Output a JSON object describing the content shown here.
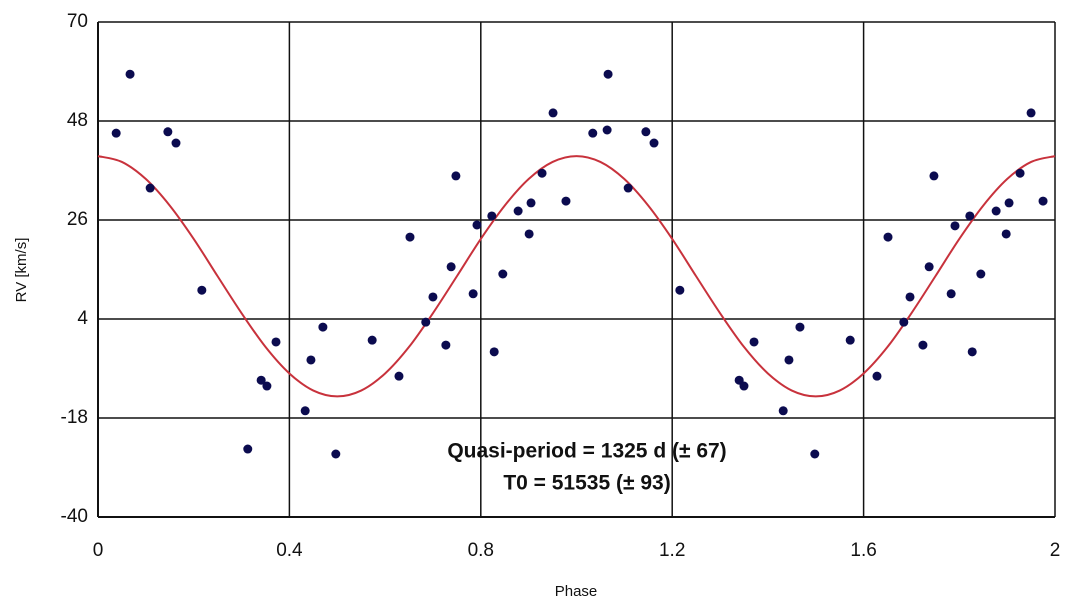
{
  "chart_data": {
    "type": "scatter",
    "x_label": "Phase",
    "y_label": "RV [km/s]",
    "annotations": [
      "Quasi-period = 1325 d (± 67)",
      "T0 = 51535 (± 93)"
    ],
    "xlim": [
      0,
      2
    ],
    "xticks": [
      0,
      0.4,
      0.8,
      1.2,
      1.6,
      2
    ],
    "ylim": [
      -40,
      70
    ],
    "yticks": [
      -40,
      -18,
      4,
      26,
      48,
      70
    ],
    "grid": true,
    "points": {
      "color": "#0b0b4f",
      "x": [
        0.038,
        0.067,
        0.109,
        0.146,
        0.163,
        0.217,
        0.313,
        0.341,
        0.353,
        0.372,
        0.433,
        0.445,
        0.47,
        0.497,
        0.573,
        0.629,
        0.652,
        0.685,
        0.7,
        0.727,
        0.738,
        0.748,
        0.784,
        0.792,
        0.823,
        0.828,
        0.846,
        0.878,
        0.901,
        0.905,
        0.928,
        0.951,
        0.978,
        1.034,
        1.064,
        1.066,
        1.108,
        1.145,
        1.162,
        1.216,
        1.34,
        1.35,
        1.371,
        1.432,
        1.444,
        1.467,
        1.498,
        1.572,
        1.628,
        1.651,
        1.684,
        1.697,
        1.724,
        1.737,
        1.747,
        1.783,
        1.791,
        1.822,
        1.827,
        1.845,
        1.877,
        1.898,
        1.904,
        1.927,
        1.95,
        1.975
      ],
      "values": [
        45.3,
        58.4,
        33.1,
        45.6,
        43.1,
        10.4,
        -24.9,
        -9.6,
        -10.9,
        -1.1,
        -16.4,
        -5.1,
        2.2,
        -26,
        -0.7,
        -8.7,
        22.2,
        3.3,
        8.9,
        -1.8,
        15.6,
        35.8,
        9.6,
        24.9,
        26.9,
        -3.3,
        14.0,
        28.0,
        22.9,
        29.8,
        36.4,
        49.8,
        30.2,
        45.3,
        46.0,
        58.4,
        33.1,
        45.6,
        43.1,
        10.4,
        -9.6,
        -10.9,
        -1.1,
        -16.4,
        -5.1,
        2.2,
        -26,
        -0.7,
        -8.7,
        22.2,
        3.3,
        8.9,
        -1.8,
        15.6,
        35.8,
        9.6,
        24.7,
        26.9,
        -3.3,
        14.0,
        28.0,
        22.9,
        29.8,
        36.4,
        49.8,
        30.2
      ]
    },
    "fit": {
      "color": "#c8323c",
      "x": [
        0,
        0.05,
        0.1,
        0.15,
        0.2,
        0.25,
        0.3,
        0.35,
        0.4,
        0.45,
        0.5,
        0.55,
        0.6,
        0.65,
        0.7,
        0.75,
        0.8,
        0.85,
        0.9,
        0.95,
        1,
        1.05,
        1.1,
        1.15,
        1.2,
        1.25,
        1.3,
        1.35,
        1.4,
        1.45,
        1.5,
        1.55,
        1.6,
        1.65,
        1.7,
        1.75,
        1.8,
        1.85,
        1.9,
        1.95,
        2
      ],
      "values": [
        40.2,
        38.9,
        35.1,
        29.2,
        21.8,
        13.5,
        5.3,
        -2.2,
        -8.1,
        -11.9,
        -13.2,
        -11.9,
        -8.1,
        -2.2,
        5.3,
        13.5,
        21.8,
        29.2,
        35.1,
        38.9,
        40.2,
        38.9,
        35.1,
        29.2,
        21.8,
        13.5,
        5.3,
        -2.2,
        -8.1,
        -11.9,
        -13.2,
        -11.9,
        -8.1,
        -2.2,
        5.3,
        13.5,
        21.8,
        29.2,
        35.1,
        38.9,
        40.2
      ]
    }
  }
}
